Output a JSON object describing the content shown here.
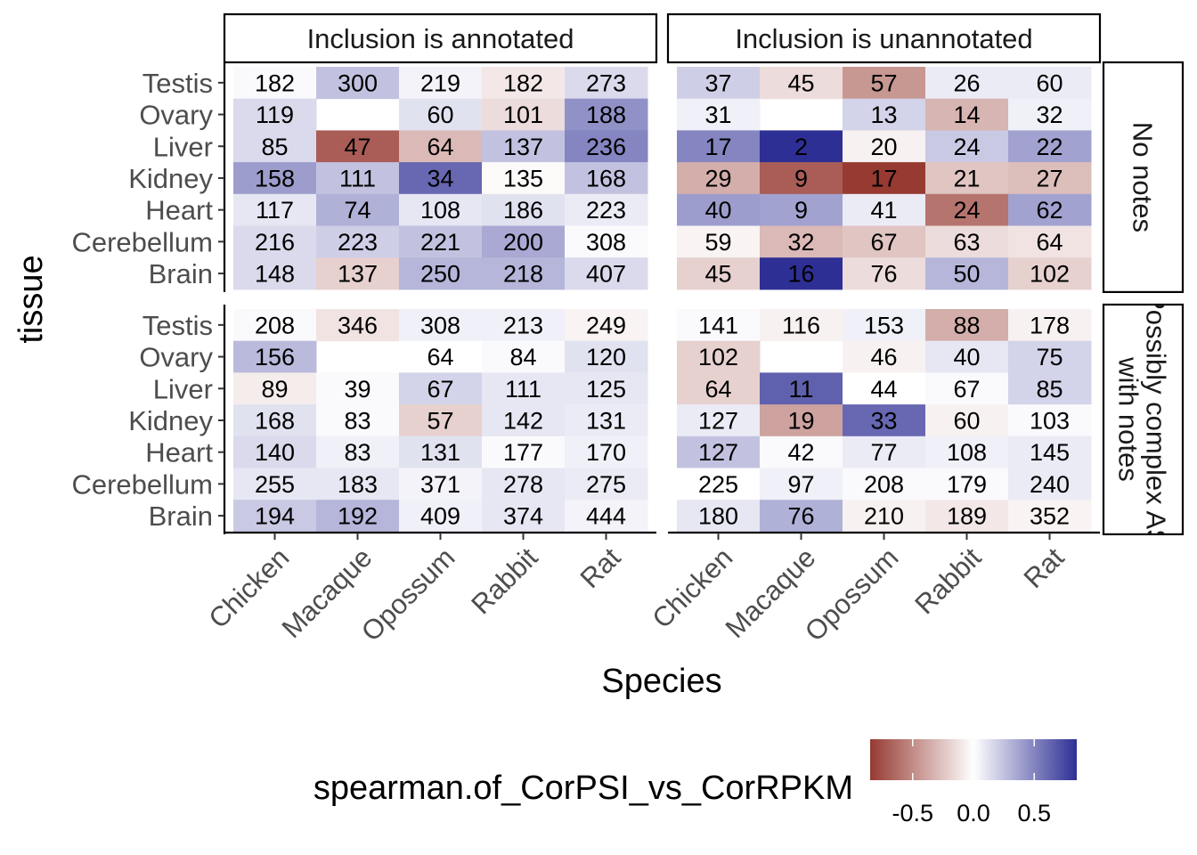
{
  "chart_data": {
    "type": "heatmap",
    "xlabel": "Species",
    "ylabel": "tissue",
    "x_categories": [
      "Chicken",
      "Macaque",
      "Opossum",
      "Rabbit",
      "Rat"
    ],
    "y_categories": [
      "Testis",
      "Ovary",
      "Liver",
      "Kidney",
      "Heart",
      "Cerebellum",
      "Brain"
    ],
    "facet_columns": [
      "Inclusion is annotated",
      "Inclusion is unannotated"
    ],
    "facet_rows": [
      "No notes",
      "Possibly complex AS with notes"
    ],
    "legend": {
      "title": "spearman.of_CorPSI_vs_CorRPKM",
      "ticks": [
        "-0.5",
        "0.0",
        "0.5"
      ],
      "range": [
        -0.85,
        0.85
      ],
      "low_color": "#963a32",
      "mid_color": "#ffffff",
      "high_color": "#2e2f95",
      "placement": "bottom"
    },
    "panels": [
      {
        "row": 0,
        "col": 0,
        "counts": [
          [
            "182",
            "300",
            "219",
            "182",
            "273"
          ],
          [
            "119",
            "",
            "60",
            "101",
            "188"
          ],
          [
            "85",
            "47",
            "64",
            "137",
            "236"
          ],
          [
            "158",
            "111",
            "34",
            "135",
            "168"
          ],
          [
            "117",
            "74",
            "108",
            "186",
            "223"
          ],
          [
            "216",
            "223",
            "221",
            "200",
            "308"
          ],
          [
            "148",
            "137",
            "250",
            "218",
            "407"
          ]
        ],
        "values": [
          [
            0.02,
            0.25,
            0.05,
            -0.1,
            0.15
          ],
          [
            0.15,
            null,
            0.12,
            -0.15,
            0.45
          ],
          [
            0.15,
            -0.7,
            -0.3,
            0.25,
            0.5
          ],
          [
            0.4,
            0.25,
            0.62,
            -0.02,
            0.25
          ],
          [
            0.1,
            0.32,
            0.1,
            0.12,
            0.08
          ],
          [
            0.15,
            0.2,
            0.25,
            0.35,
            0.02
          ],
          [
            0.15,
            -0.2,
            0.3,
            0.3,
            0.15
          ]
        ]
      },
      {
        "row": 0,
        "col": 1,
        "counts": [
          [
            "37",
            "45",
            "57",
            "26",
            "60"
          ],
          [
            "31",
            "",
            "13",
            "14",
            "32"
          ],
          [
            "17",
            "2",
            "20",
            "24",
            "22"
          ],
          [
            "29",
            "9",
            "17",
            "21",
            "27"
          ],
          [
            "40",
            "9",
            "41",
            "24",
            "62"
          ],
          [
            "59",
            "32",
            "67",
            "63",
            "64"
          ],
          [
            "45",
            "16",
            "76",
            "50",
            "102"
          ]
        ],
        "values": [
          [
            0.2,
            -0.15,
            -0.45,
            0.08,
            0.08
          ],
          [
            0.06,
            null,
            0.18,
            -0.32,
            0.06
          ],
          [
            0.5,
            0.95,
            -0.06,
            0.22,
            0.38
          ],
          [
            -0.35,
            -0.7,
            -0.85,
            -0.25,
            -0.28
          ],
          [
            0.4,
            0.38,
            0.08,
            -0.6,
            0.38
          ],
          [
            -0.05,
            -0.3,
            -0.25,
            -0.15,
            -0.12
          ],
          [
            -0.2,
            0.9,
            -0.15,
            0.3,
            -0.2
          ]
        ]
      },
      {
        "row": 1,
        "col": 0,
        "counts": [
          [
            "208",
            "346",
            "308",
            "213",
            "249"
          ],
          [
            "156",
            "",
            "64",
            "84",
            "120"
          ],
          [
            "89",
            "39",
            "67",
            "111",
            "125"
          ],
          [
            "168",
            "83",
            "57",
            "142",
            "131"
          ],
          [
            "140",
            "83",
            "131",
            "177",
            "170"
          ],
          [
            "255",
            "183",
            "371",
            "278",
            "275"
          ],
          [
            "194",
            "192",
            "409",
            "374",
            "444"
          ]
        ],
        "values": [
          [
            0.02,
            -0.12,
            0.06,
            0.06,
            -0.05
          ],
          [
            0.28,
            null,
            0.0,
            0.02,
            0.12
          ],
          [
            -0.08,
            0.02,
            0.18,
            0.1,
            0.1
          ],
          [
            0.12,
            0.02,
            -0.2,
            0.1,
            0.08
          ],
          [
            0.15,
            0.06,
            0.12,
            0.02,
            0.06
          ],
          [
            0.1,
            0.1,
            0.05,
            0.1,
            0.08
          ],
          [
            0.22,
            0.3,
            0.06,
            0.1,
            0.05
          ]
        ]
      },
      {
        "row": 1,
        "col": 1,
        "counts": [
          [
            "141",
            "116",
            "153",
            "88",
            "178"
          ],
          [
            "102",
            "",
            "46",
            "40",
            "75"
          ],
          [
            "64",
            "11",
            "44",
            "67",
            "85"
          ],
          [
            "127",
            "19",
            "33",
            "60",
            "103"
          ],
          [
            "127",
            "42",
            "77",
            "108",
            "145"
          ],
          [
            "225",
            "97",
            "208",
            "179",
            "240"
          ],
          [
            "180",
            "76",
            "210",
            "189",
            "352"
          ]
        ],
        "values": [
          [
            0.02,
            -0.06,
            0.06,
            -0.35,
            -0.06
          ],
          [
            -0.2,
            null,
            -0.06,
            0.1,
            0.18
          ],
          [
            -0.2,
            0.65,
            0.0,
            0.02,
            0.18
          ],
          [
            0.08,
            -0.4,
            0.62,
            -0.06,
            0.02
          ],
          [
            0.25,
            0.02,
            0.08,
            0.06,
            0.08
          ],
          [
            0.0,
            0.06,
            0.02,
            0.02,
            0.08
          ],
          [
            0.1,
            0.32,
            -0.06,
            -0.1,
            -0.05
          ]
        ]
      }
    ]
  }
}
